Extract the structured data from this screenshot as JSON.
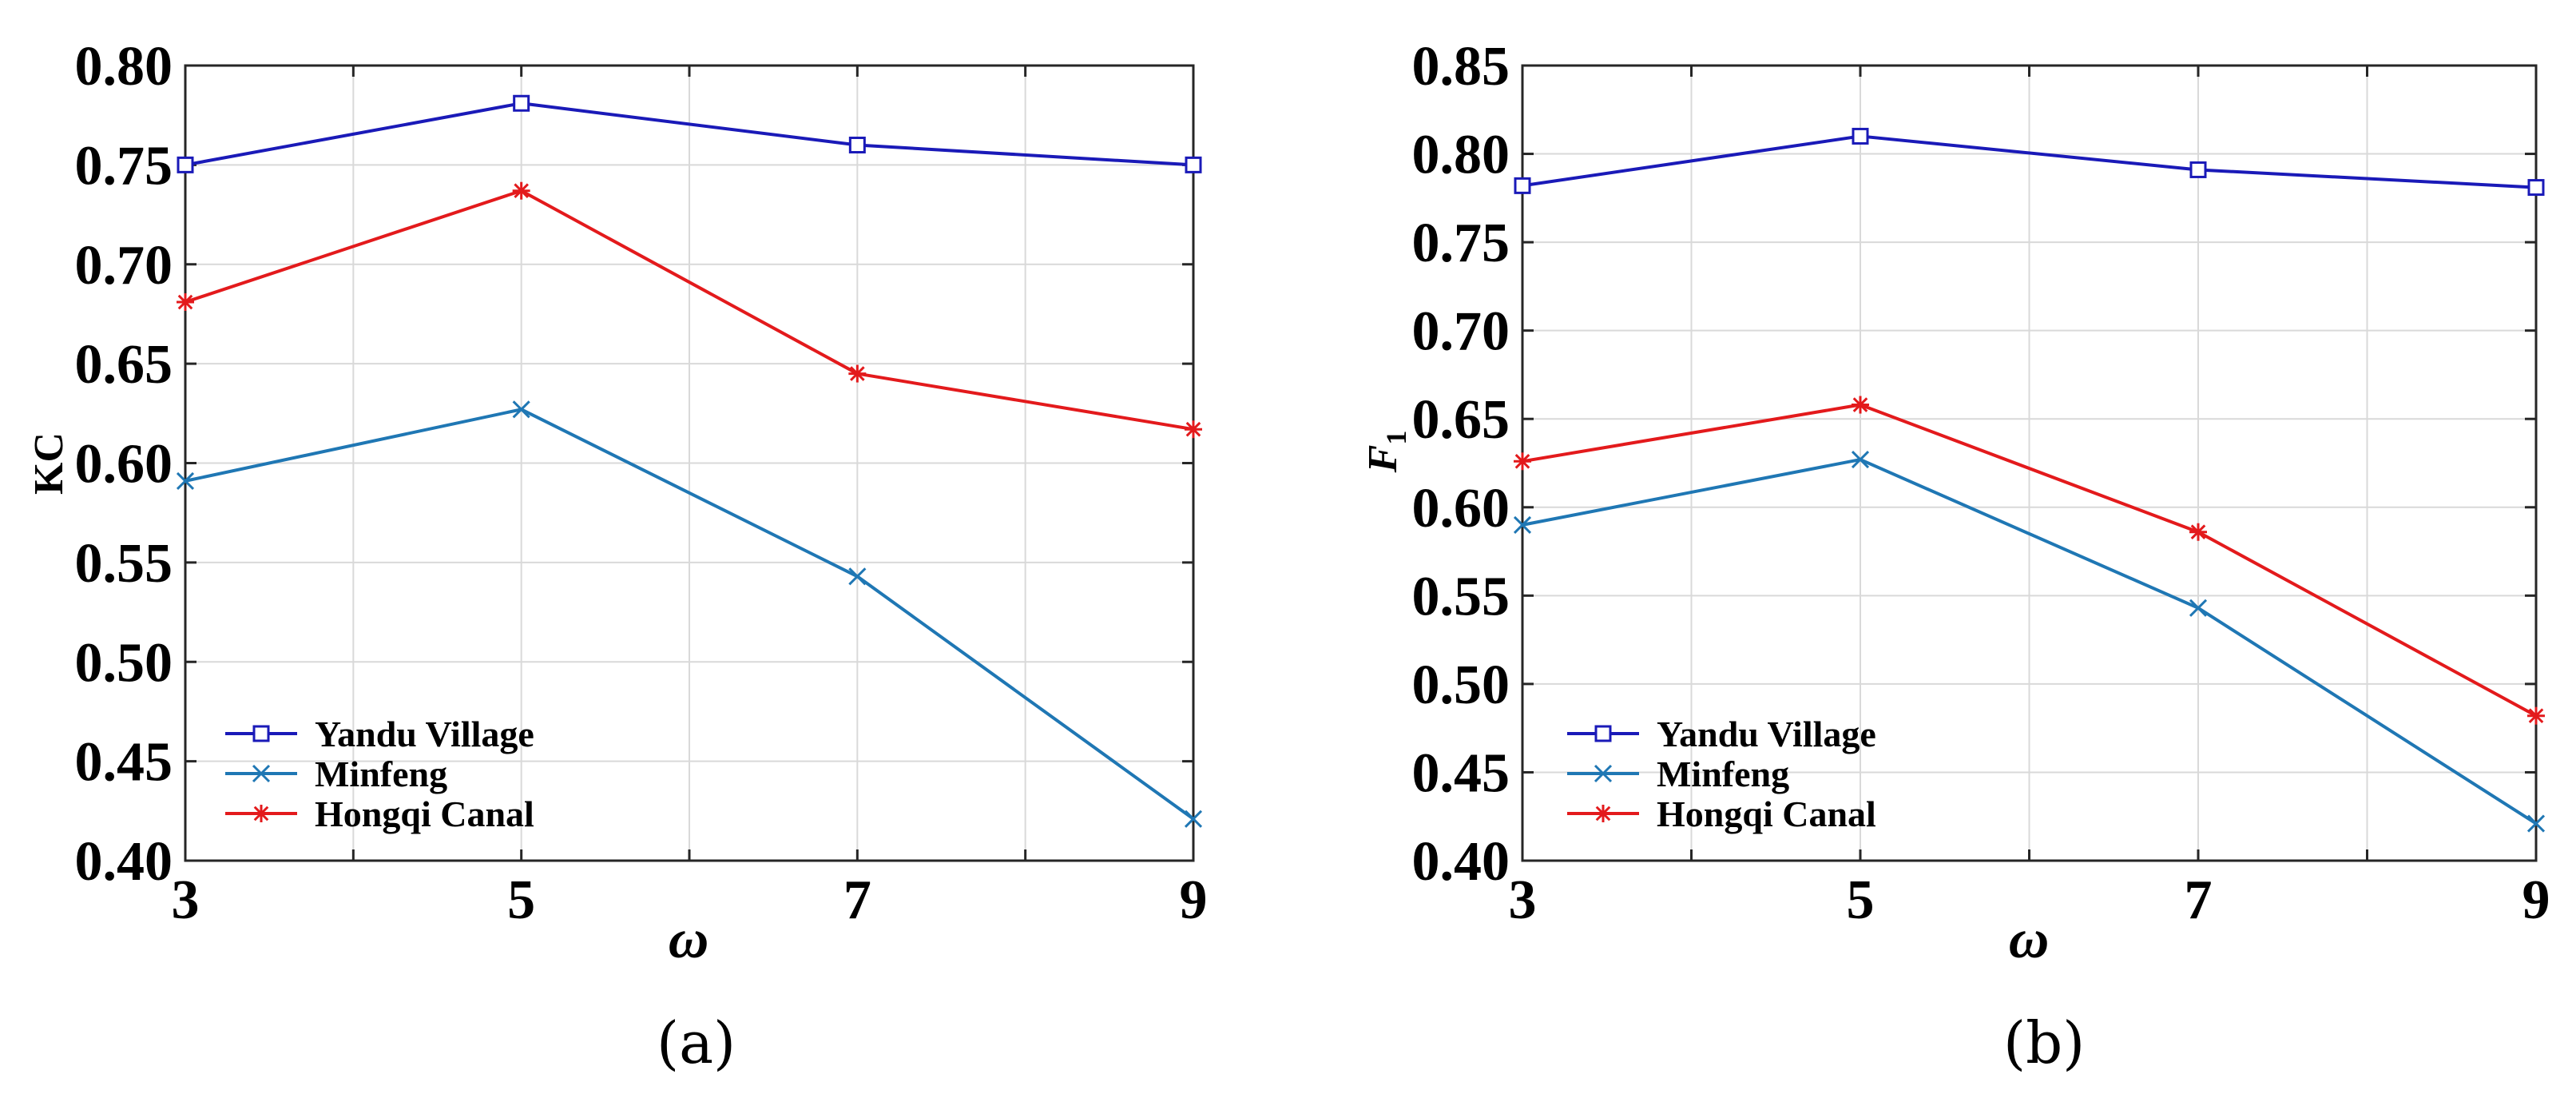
{
  "chart_data": [
    {
      "type": "line",
      "panel_label": "(a)",
      "xlabel": "ω",
      "ylabel": "KC",
      "ylabel_sub": "",
      "x": [
        3,
        5,
        7,
        9
      ],
      "x_minor": [
        4,
        6,
        8
      ],
      "xlim": [
        3,
        9
      ],
      "ylim": [
        0.4,
        0.8
      ],
      "yticks": [
        0.4,
        0.45,
        0.5,
        0.55,
        0.6,
        0.65,
        0.7,
        0.75,
        0.8
      ],
      "ytick_labels": [
        "0.40",
        "0.45",
        "0.50",
        "0.55",
        "0.60",
        "0.65",
        "0.70",
        "0.75",
        "0.80"
      ],
      "xtick_labels": [
        "3",
        "5",
        "7",
        "9"
      ],
      "grid": true,
      "legend_position": "lower-left",
      "series": [
        {
          "name": "Yandu Village",
          "color": "#1a1ab8",
          "marker": "square",
          "values": [
            0.75,
            0.781,
            0.76,
            0.75
          ]
        },
        {
          "name": "Minfeng",
          "color": "#1f77b4",
          "marker": "x",
          "values": [
            0.591,
            0.627,
            0.543,
            0.421
          ]
        },
        {
          "name": "Hongqi Canal",
          "color": "#e31a1c",
          "marker": "asterisk",
          "values": [
            0.681,
            0.737,
            0.645,
            0.617
          ]
        }
      ]
    },
    {
      "type": "line",
      "panel_label": "(b)",
      "xlabel": "ω",
      "ylabel": "F",
      "ylabel_sub": "1",
      "x": [
        3,
        5,
        7,
        9
      ],
      "x_minor": [
        4,
        6,
        8
      ],
      "xlim": [
        3,
        9
      ],
      "ylim": [
        0.4,
        0.85
      ],
      "yticks": [
        0.4,
        0.45,
        0.5,
        0.55,
        0.6,
        0.65,
        0.7,
        0.75,
        0.8,
        0.85
      ],
      "ytick_labels": [
        "0.40",
        "0.45",
        "0.50",
        "0.55",
        "0.60",
        "0.65",
        "0.70",
        "0.75",
        "0.80",
        "0.85"
      ],
      "xtick_labels": [
        "3",
        "5",
        "7",
        "9"
      ],
      "grid": true,
      "legend_position": "lower-left",
      "series": [
        {
          "name": "Yandu Village",
          "color": "#1a1ab8",
          "marker": "square",
          "values": [
            0.782,
            0.81,
            0.791,
            0.781
          ]
        },
        {
          "name": "Minfeng",
          "color": "#1f77b4",
          "marker": "x",
          "values": [
            0.59,
            0.627,
            0.543,
            0.421
          ]
        },
        {
          "name": "Hongqi Canal",
          "color": "#e31a1c",
          "marker": "asterisk",
          "values": [
            0.626,
            0.658,
            0.586,
            0.482
          ]
        }
      ]
    }
  ]
}
